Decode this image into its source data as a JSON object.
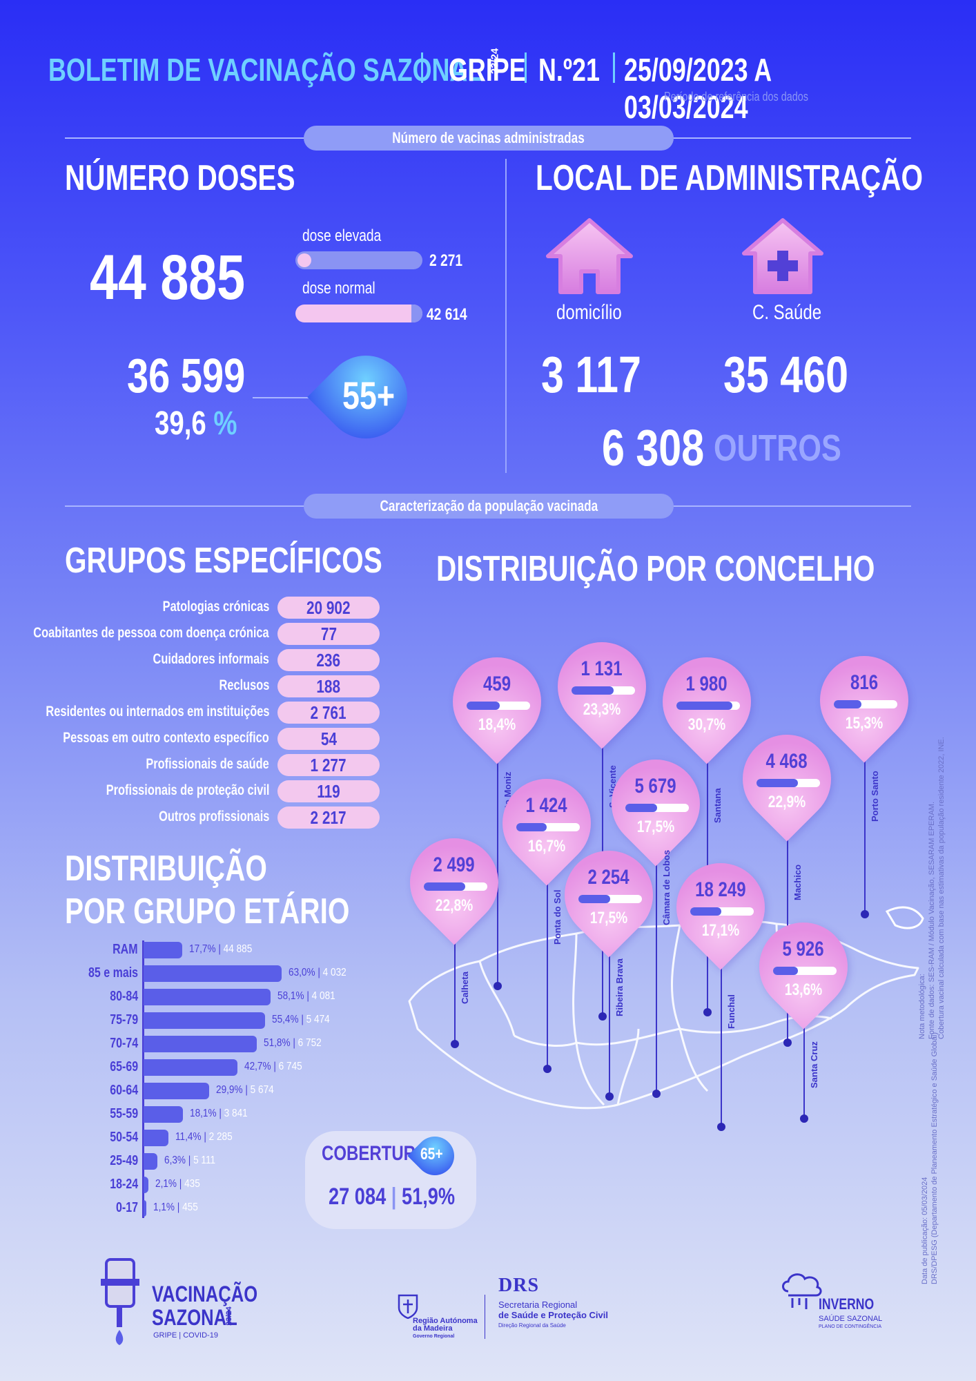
{
  "header": {
    "title": "BOLETIM DE VACINAÇÃO SAZONAL",
    "season": "23/24",
    "type": "GRIPE",
    "number": "N.º21",
    "period": "25/09/2023 A 03/03/2024",
    "period_note": "Período de referência dos dados"
  },
  "sections": {
    "vaccines": "Número de vacinas administradas",
    "population": "Caracterização da população vacinada"
  },
  "doses": {
    "title": "NÚMERO DOSES",
    "total": "44 885",
    "high_label": "dose elevada",
    "high_value": "2 271",
    "high_fraction": 0.05,
    "normal_label": "dose normal",
    "normal_value": "42 614",
    "normal_fraction": 0.95,
    "age55_count": "36 599",
    "age55_pct": "39,6",
    "pct_sign": "%",
    "age55_badge": "55+"
  },
  "local": {
    "title": "LOCAL DE ADMINISTRAÇÃO",
    "home_label": "domicílio",
    "home_value": "3 117",
    "health_label": "C. Saúde",
    "health_value": "35 460",
    "other_value": "6 308",
    "other_label": "OUTROS",
    "home_icon": "house-icon",
    "health_icon": "health-center-icon"
  },
  "groups": {
    "title": "GRUPOS ESPECÍFICOS",
    "items": [
      {
        "label": "Patologias crónicas",
        "value": "20 902"
      },
      {
        "label": "Coabitantes de pessoa com doença crónica",
        "value": "77"
      },
      {
        "label": "Cuidadores informais",
        "value": "236"
      },
      {
        "label": "Reclusos",
        "value": "188"
      },
      {
        "label": "Residentes ou internados em instituições",
        "value": "2 761"
      },
      {
        "label": "Pessoas em outro contexto específico",
        "value": "54"
      },
      {
        "label": "Profissionais de saúde",
        "value": "1 277"
      },
      {
        "label": "Profissionais de proteção civil",
        "value": "119"
      },
      {
        "label": "Outros profissionais",
        "value": "2 217"
      }
    ]
  },
  "age": {
    "title_1": "DISTRIBUIÇÃO",
    "title_2": "POR GRUPO ETÁRIO",
    "rows": [
      {
        "label": "RAM",
        "pct": "17,7%",
        "n": "44 885",
        "value": 17.7
      },
      {
        "label": "85 e mais",
        "pct": "63,0%",
        "n": "4 032",
        "value": 63.0
      },
      {
        "label": "80-84",
        "pct": "58,1%",
        "n": "4 081",
        "value": 58.1
      },
      {
        "label": "75-79",
        "pct": "55,4%",
        "n": "5 474",
        "value": 55.4
      },
      {
        "label": "70-74",
        "pct": "51,8%",
        "n": "6 752",
        "value": 51.8
      },
      {
        "label": "65-69",
        "pct": "42,7%",
        "n": "6 745",
        "value": 42.7
      },
      {
        "label": "60-64",
        "pct": "29,9%",
        "n": "5 674",
        "value": 29.9
      },
      {
        "label": "55-59",
        "pct": "18,1%",
        "n": "3 841",
        "value": 18.1
      },
      {
        "label": "50-54",
        "pct": "11,4%",
        "n": "2 285",
        "value": 11.4
      },
      {
        "label": "25-49",
        "pct": "6,3%",
        "n": "5 111",
        "value": 6.3
      },
      {
        "label": "18-24",
        "pct": "2,1%",
        "n": "435",
        "value": 2.1
      },
      {
        "label": "0-17",
        "pct": "1,1%",
        "n": "455",
        "value": 1.1
      }
    ]
  },
  "coverage": {
    "label": "COBERTURA",
    "badge": "65+",
    "count": "27 084",
    "sep": "|",
    "pct": "51,9%"
  },
  "municipalities": {
    "title": "DISTRIBUIÇÃO POR CONCELHO",
    "items": [
      {
        "name": "Porto Moniz",
        "value": "459",
        "pct": "18,4%",
        "fraction": 0.184
      },
      {
        "name": "S. Vicente",
        "value": "1 131",
        "pct": "23,3%",
        "fraction": 0.233
      },
      {
        "name": "Santana",
        "value": "1 980",
        "pct": "30,7%",
        "fraction": 0.307
      },
      {
        "name": "Porto Santo",
        "value": "816",
        "pct": "15,3%",
        "fraction": 0.153
      },
      {
        "name": "Machico",
        "value": "4 468",
        "pct": "22,9%",
        "fraction": 0.229
      },
      {
        "name": "Câmara de Lobos",
        "value": "5 679",
        "pct": "17,5%",
        "fraction": 0.175
      },
      {
        "name": "Ponta do Sol",
        "value": "1 424",
        "pct": "16,7%",
        "fraction": 0.167
      },
      {
        "name": "Calheta",
        "value": "2 499",
        "pct": "22,8%",
        "fraction": 0.228
      },
      {
        "name": "Ribeira Brava",
        "value": "2 254",
        "pct": "17,5%",
        "fraction": 0.175
      },
      {
        "name": "Funchal",
        "value": "18 249",
        "pct": "17,1%",
        "fraction": 0.171
      },
      {
        "name": "Santa Cruz",
        "value": "5 926",
        "pct": "13,6%",
        "fraction": 0.136
      }
    ]
  },
  "notes": {
    "method_1": "Nota metodológica:",
    "method_2": "Fonte de dados: SES-RAM / Módulo Vacinação, SESARAM EPERAM.",
    "method_3": "Cobertura vacinal calculada com base nas estimativas da população residente 2022, INE.",
    "pub_1": "Data de publicação: 05/03/2024",
    "pub_2": "DRS/DPESG (Departamento de Planeamento Estratégico e Saúde Global)"
  },
  "footer": {
    "vacc_1": "VACINAÇÃO",
    "vacc_2": "SAZONAL",
    "vacc_season": "23/24",
    "vacc_sub": "GRIPE | COVID-19",
    "region_1": "Região Autónoma",
    "region_2": "da Madeira",
    "region_3": "Governo Regional",
    "drs": "DRS",
    "sec_1": "Secretaria Regional",
    "sec_2": "de Saúde e Proteção Civil",
    "sec_3": "Direção Regional da Saúde",
    "winter_1": "INVERNO",
    "winter_2": "SAÚDE SAZONAL",
    "winter_3": "PLANO DE CONTINGÊNCIA"
  },
  "colors": {
    "accent": "#6fd0ff",
    "pin": "#e58fe3",
    "bar": "#5a5ee8"
  }
}
